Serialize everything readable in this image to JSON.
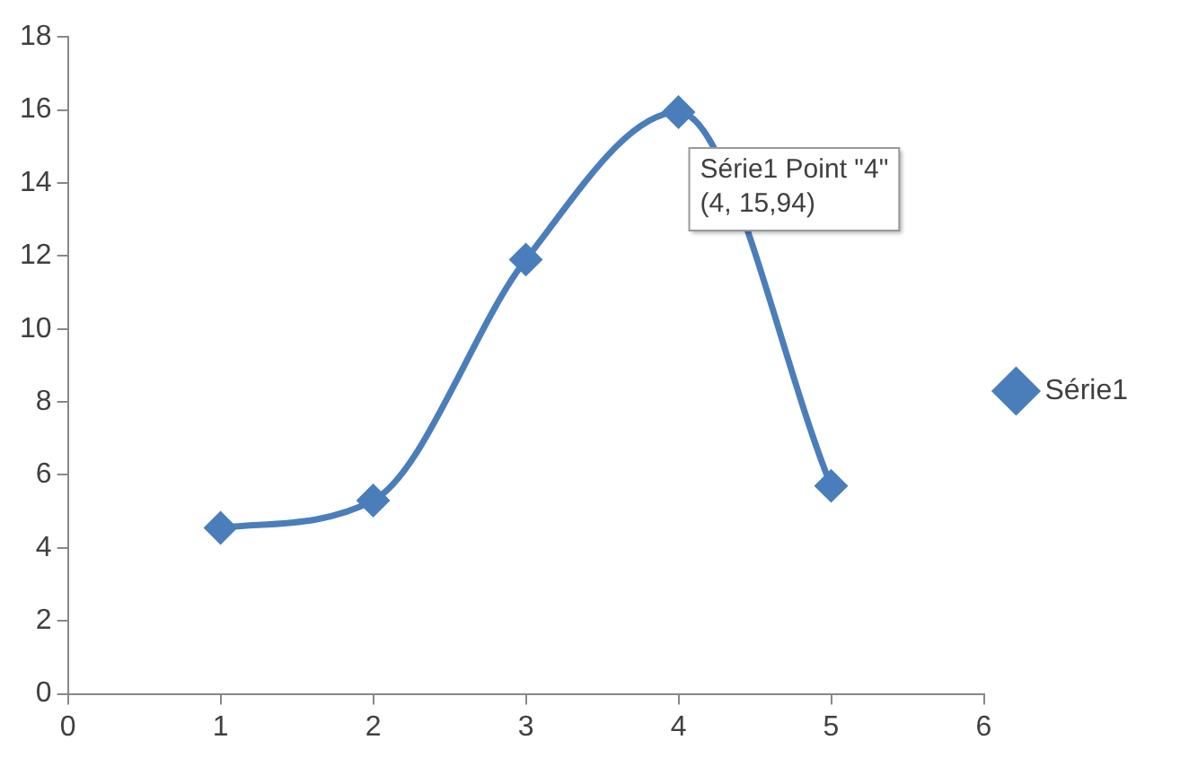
{
  "chart_data": {
    "type": "line",
    "x": [
      1,
      2,
      3,
      4,
      5
    ],
    "series": [
      {
        "name": "Série1",
        "color": "#4a7ebb",
        "values": [
          4.55,
          5.3,
          11.9,
          15.94,
          5.7
        ]
      }
    ],
    "xlim": [
      0,
      6
    ],
    "xticks": [
      0,
      1,
      2,
      3,
      4,
      5,
      6
    ],
    "ylim": [
      0,
      18
    ],
    "yticks": [
      0,
      2,
      4,
      6,
      8,
      10,
      12,
      14,
      16,
      18
    ],
    "grid": false,
    "legend": "right",
    "marker": "diamond",
    "line_style": "solid",
    "annotations": [
      {
        "text": "Série1 Point \"4\"\n(4, 15,94)",
        "x": 4,
        "y": 15.94
      }
    ]
  }
}
